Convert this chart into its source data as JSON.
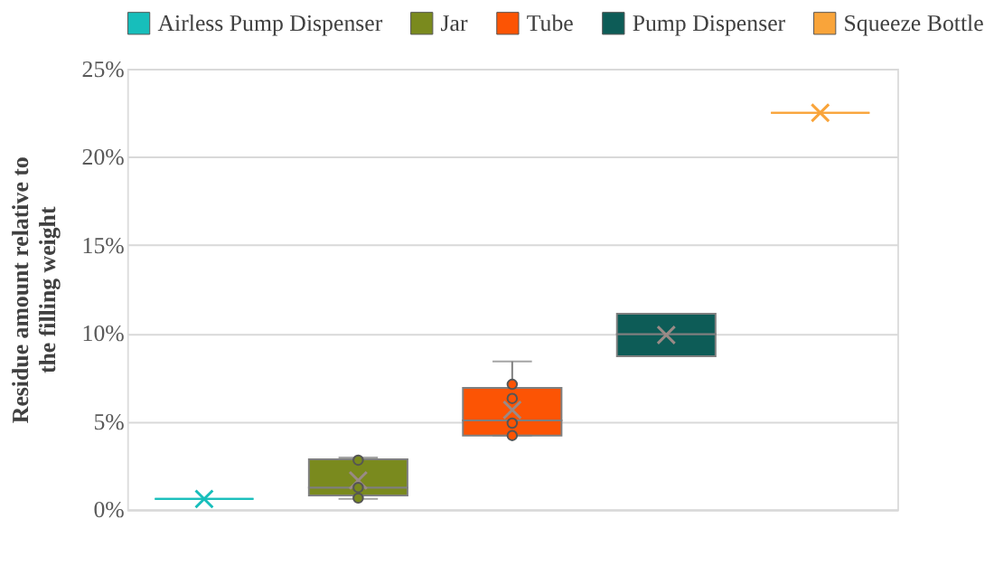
{
  "chart_data": {
    "type": "box",
    "ylabel": "Residue amount relative to the filling weight",
    "categories": [
      null,
      null,
      null,
      null,
      null
    ],
    "series": [
      {
        "name": "Airless Pump Dispenser",
        "color": "#17bebb",
        "boxes": [
          {
            "low": 0.6,
            "q1": 0.6,
            "median": 0.6,
            "q3": 0.6,
            "high": 0.6,
            "mean": 0.6
          },
          null,
          null,
          null,
          null
        ]
      },
      {
        "name": "Jar",
        "color": "#7a8a1e",
        "boxes": [
          null,
          {
            "low": 0.6,
            "q1": 0.8,
            "median": 1.25,
            "q3": 2.85,
            "high": 2.95,
            "mean": 1.65,
            "outliers": [
              0.65,
              1.25,
              2.8
            ]
          },
          null,
          null,
          null
        ]
      },
      {
        "name": "Tube",
        "color": "#fc5404",
        "boxes": [
          null,
          null,
          {
            "low": 4.2,
            "q1": 4.2,
            "median": 5.05,
            "q3": 6.9,
            "high": 8.4,
            "mean": 5.65,
            "outliers": [
              4.2,
              4.9,
              6.3,
              7.1
            ]
          },
          null,
          null
        ]
      },
      {
        "name": "Pump Dispenser",
        "color": "#0d5c57",
        "boxes": [
          null,
          null,
          null,
          {
            "low": 8.7,
            "q1": 8.7,
            "median": 9.95,
            "q3": 11.1,
            "high": 11.1,
            "mean": 9.9
          },
          null
        ]
      },
      {
        "name": "Squeeze Bottle",
        "color": "#f9a43a",
        "boxes": [
          null,
          null,
          null,
          null,
          {
            "low": 22.5,
            "q1": 22.5,
            "median": 22.5,
            "q3": 22.5,
            "high": 22.5,
            "mean": 22.5
          }
        ]
      }
    ],
    "ylim": [
      0,
      25
    ],
    "yticks": [
      {
        "value": 0,
        "label": "0%"
      },
      {
        "value": 5,
        "label": "5%"
      },
      {
        "value": 10,
        "label": "10%"
      },
      {
        "value": 15,
        "label": "15%"
      },
      {
        "value": 20,
        "label": "20%"
      },
      {
        "value": 25,
        "label": "25%"
      }
    ],
    "grid": "y",
    "legend": "top"
  }
}
